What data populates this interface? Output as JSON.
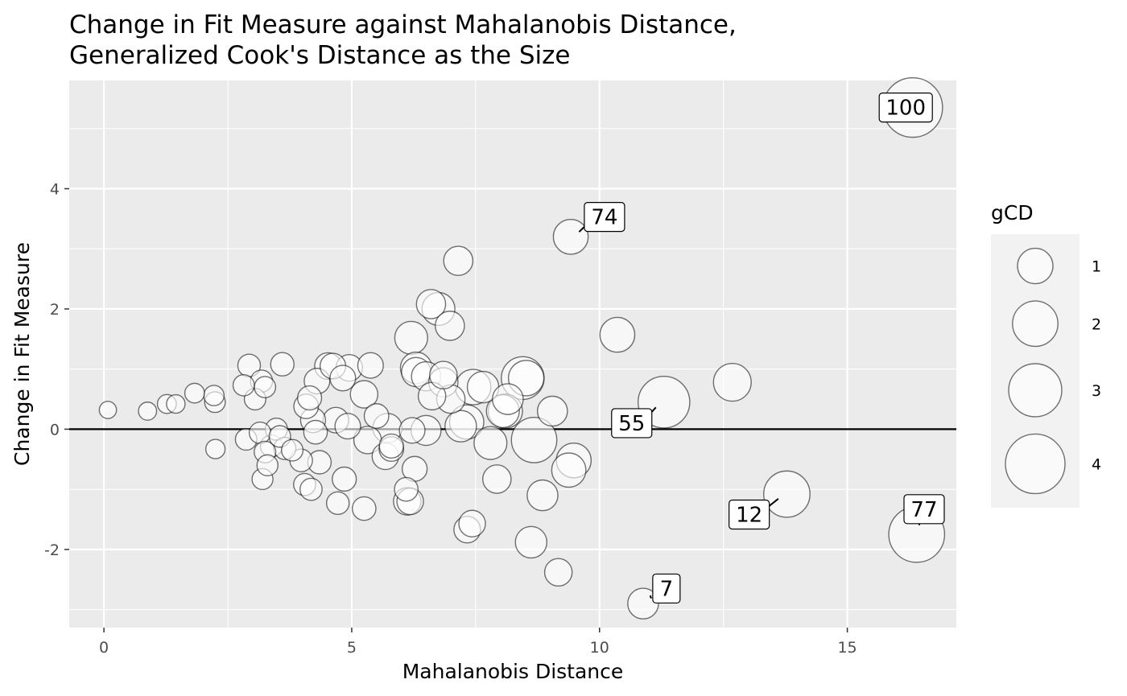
{
  "chart_data": {
    "type": "scatter",
    "title_lines": [
      "Change in Fit Measure against Mahalanobis Distance,",
      "Generalized Cook's Distance as the Size"
    ],
    "xlabel": "Mahalanobis Distance",
    "ylabel": "Change in Fit Measure",
    "xlim": [
      -0.7,
      17.2
    ],
    "ylim": [
      -3.3,
      5.8
    ],
    "x_ticks": [
      0,
      5,
      10,
      15
    ],
    "x_tick_labels": [
      "0",
      "5",
      "10",
      "15"
    ],
    "y_ticks": [
      -2,
      0,
      2,
      4
    ],
    "y_tick_labels": [
      "-2",
      "0",
      "2",
      "4"
    ],
    "reference_line_y": 0,
    "grid": true,
    "size_legend": {
      "title": "gCD",
      "placement": "right",
      "levels": [
        1,
        2,
        3,
        4
      ],
      "labels": [
        "1",
        "2",
        "3",
        "4"
      ]
    },
    "points": [
      {
        "x": 0.08,
        "y": 0.32,
        "s": 0.06
      },
      {
        "x": 0.88,
        "y": 0.3,
        "s": 0.08
      },
      {
        "x": 1.27,
        "y": 0.42,
        "s": 0.1
      },
      {
        "x": 1.45,
        "y": 0.42,
        "s": 0.09
      },
      {
        "x": 1.83,
        "y": 0.6,
        "s": 0.12
      },
      {
        "x": 2.22,
        "y": 0.56,
        "s": 0.14
      },
      {
        "x": 2.24,
        "y": 0.45,
        "s": 0.15
      },
      {
        "x": 2.25,
        "y": -0.33,
        "s": 0.11
      },
      {
        "x": 2.82,
        "y": 0.73,
        "s": 0.17
      },
      {
        "x": 2.87,
        "y": -0.17,
        "s": 0.18
      },
      {
        "x": 2.93,
        "y": 1.06,
        "s": 0.22
      },
      {
        "x": 3.05,
        "y": 0.5,
        "s": 0.18
      },
      {
        "x": 3.15,
        "y": -0.06,
        "s": 0.18
      },
      {
        "x": 3.18,
        "y": 0.8,
        "s": 0.2
      },
      {
        "x": 3.2,
        "y": -0.83,
        "s": 0.16
      },
      {
        "x": 3.25,
        "y": 0.7,
        "s": 0.17
      },
      {
        "x": 3.25,
        "y": -0.38,
        "s": 0.18
      },
      {
        "x": 3.3,
        "y": -0.6,
        "s": 0.16
      },
      {
        "x": 3.38,
        "y": -0.28,
        "s": 0.2
      },
      {
        "x": 3.48,
        "y": 0.0,
        "s": 0.2
      },
      {
        "x": 3.55,
        "y": -0.12,
        "s": 0.18
      },
      {
        "x": 3.6,
        "y": 1.08,
        "s": 0.25
      },
      {
        "x": 3.65,
        "y": -0.32,
        "s": 0.2
      },
      {
        "x": 3.8,
        "y": -0.35,
        "s": 0.18
      },
      {
        "x": 3.98,
        "y": -0.52,
        "s": 0.22
      },
      {
        "x": 4.05,
        "y": -0.92,
        "s": 0.2
      },
      {
        "x": 4.08,
        "y": 0.38,
        "s": 0.3
      },
      {
        "x": 4.15,
        "y": 0.52,
        "s": 0.28
      },
      {
        "x": 4.18,
        "y": -1.0,
        "s": 0.2
      },
      {
        "x": 4.22,
        "y": 0.15,
        "s": 0.32
      },
      {
        "x": 4.27,
        "y": -0.05,
        "s": 0.26
      },
      {
        "x": 4.3,
        "y": 0.8,
        "s": 0.35
      },
      {
        "x": 4.35,
        "y": -0.55,
        "s": 0.25
      },
      {
        "x": 4.52,
        "y": 1.05,
        "s": 0.4
      },
      {
        "x": 4.62,
        "y": 1.05,
        "s": 0.35
      },
      {
        "x": 4.68,
        "y": 0.15,
        "s": 0.35
      },
      {
        "x": 4.72,
        "y": -1.23,
        "s": 0.22
      },
      {
        "x": 4.82,
        "y": 0.85,
        "s": 0.35
      },
      {
        "x": 4.85,
        "y": -0.83,
        "s": 0.28
      },
      {
        "x": 4.92,
        "y": 0.05,
        "s": 0.35
      },
      {
        "x": 4.95,
        "y": 1.02,
        "s": 0.4
      },
      {
        "x": 5.25,
        "y": -1.32,
        "s": 0.26
      },
      {
        "x": 5.25,
        "y": 0.58,
        "s": 0.45
      },
      {
        "x": 5.32,
        "y": -0.18,
        "s": 0.45
      },
      {
        "x": 5.38,
        "y": 1.06,
        "s": 0.35
      },
      {
        "x": 5.5,
        "y": 0.22,
        "s": 0.3
      },
      {
        "x": 5.68,
        "y": -0.45,
        "s": 0.4
      },
      {
        "x": 5.72,
        "y": 0.02,
        "s": 0.55
      },
      {
        "x": 5.8,
        "y": -0.33,
        "s": 0.3
      },
      {
        "x": 5.8,
        "y": -0.28,
        "s": 0.28
      },
      {
        "x": 6.1,
        "y": -1.0,
        "s": 0.26
      },
      {
        "x": 6.12,
        "y": -1.2,
        "s": 0.45
      },
      {
        "x": 6.18,
        "y": -1.2,
        "s": 0.4
      },
      {
        "x": 6.2,
        "y": 1.52,
        "s": 0.8
      },
      {
        "x": 6.22,
        "y": -0.02,
        "s": 0.35
      },
      {
        "x": 6.27,
        "y": -0.66,
        "s": 0.32
      },
      {
        "x": 6.3,
        "y": 0.95,
        "s": 0.55
      },
      {
        "x": 6.3,
        "y": 1.02,
        "s": 0.7
      },
      {
        "x": 6.5,
        "y": 0.88,
        "s": 0.55
      },
      {
        "x": 6.5,
        "y": -0.02,
        "s": 0.6
      },
      {
        "x": 6.6,
        "y": 2.08,
        "s": 0.55
      },
      {
        "x": 6.62,
        "y": 0.55,
        "s": 0.45
      },
      {
        "x": 6.75,
        "y": 2.0,
        "s": 0.8
      },
      {
        "x": 6.85,
        "y": 0.9,
        "s": 0.45
      },
      {
        "x": 6.85,
        "y": 0.78,
        "s": 0.55
      },
      {
        "x": 6.98,
        "y": 1.72,
        "s": 0.55
      },
      {
        "x": 7.0,
        "y": 0.5,
        "s": 0.5
      },
      {
        "x": 7.15,
        "y": 2.8,
        "s": 0.55
      },
      {
        "x": 7.2,
        "y": 0.05,
        "s": 0.7
      },
      {
        "x": 7.32,
        "y": 0.12,
        "s": 0.9
      },
      {
        "x": 7.33,
        "y": -1.67,
        "s": 0.4
      },
      {
        "x": 7.43,
        "y": -1.57,
        "s": 0.4
      },
      {
        "x": 7.45,
        "y": 0.7,
        "s": 1.0
      },
      {
        "x": 7.65,
        "y": 0.7,
        "s": 0.7
      },
      {
        "x": 7.8,
        "y": -0.23,
        "s": 0.8
      },
      {
        "x": 7.93,
        "y": -0.83,
        "s": 0.5
      },
      {
        "x": 8.05,
        "y": 0.3,
        "s": 0.8
      },
      {
        "x": 8.1,
        "y": 0.3,
        "s": 0.9
      },
      {
        "x": 8.15,
        "y": 0.5,
        "s": 0.65
      },
      {
        "x": 8.45,
        "y": 0.85,
        "s": 1.7
      },
      {
        "x": 8.52,
        "y": 0.85,
        "s": 1.0
      },
      {
        "x": 8.62,
        "y": -1.88,
        "s": 0.7
      },
      {
        "x": 8.68,
        "y": -0.18,
        "s": 2.0
      },
      {
        "x": 8.85,
        "y": -1.1,
        "s": 0.65
      },
      {
        "x": 9.05,
        "y": 0.3,
        "s": 0.6
      },
      {
        "x": 9.17,
        "y": -2.38,
        "s": 0.45
      },
      {
        "x": 9.38,
        "y": -0.68,
        "s": 0.9
      },
      {
        "x": 9.42,
        "y": 3.2,
        "s": 0.95
      },
      {
        "x": 9.48,
        "y": -0.52,
        "s": 0.95
      },
      {
        "x": 10.36,
        "y": 1.57,
        "s": 0.95
      },
      {
        "x": 10.88,
        "y": -2.9,
        "s": 0.65
      },
      {
        "x": 11.3,
        "y": 0.45,
        "s": 2.8
      },
      {
        "x": 12.68,
        "y": 0.78,
        "s": 1.2
      },
      {
        "x": 13.78,
        "y": -1.08,
        "s": 2.1
      },
      {
        "x": 16.32,
        "y": 5.35,
        "s": 4.0
      },
      {
        "x": 16.4,
        "y": -1.75,
        "s": 3.4
      }
    ],
    "labels": [
      {
        "text": "100",
        "x": 16.32,
        "y": 5.35,
        "lx": 16.18,
        "ly": 5.35
      },
      {
        "text": "74",
        "x": 9.42,
        "y": 3.2,
        "lx": 10.1,
        "ly": 3.53
      },
      {
        "text": "55",
        "x": 11.3,
        "y": 0.45,
        "lx": 10.65,
        "ly": 0.1
      },
      {
        "text": "12",
        "x": 13.78,
        "y": -1.08,
        "lx": 13.02,
        "ly": -1.42
      },
      {
        "text": "77",
        "x": 16.4,
        "y": -1.75,
        "lx": 16.55,
        "ly": -1.33
      },
      {
        "text": "7",
        "x": 10.88,
        "y": -2.9,
        "lx": 11.35,
        "ly": -2.65
      }
    ]
  }
}
